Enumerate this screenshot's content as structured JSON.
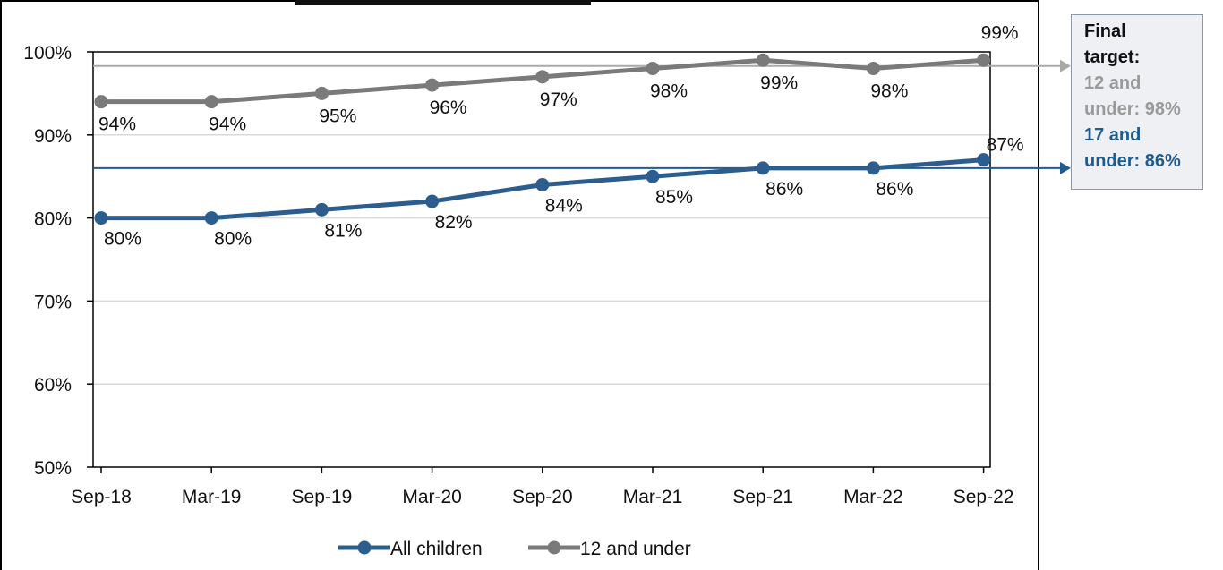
{
  "chart_data": {
    "type": "line",
    "categories": [
      "Sep-18",
      "Mar-19",
      "Sep-19",
      "Mar-20",
      "Sep-20",
      "Mar-21",
      "Sep-21",
      "Mar-22",
      "Sep-22"
    ],
    "series": [
      {
        "name": "All children",
        "color": "#2c5d8f",
        "values": [
          80,
          80,
          81,
          82,
          84,
          85,
          86,
          86,
          87
        ],
        "labels": [
          "80%",
          "80%",
          "81%",
          "82%",
          "84%",
          "85%",
          "86%",
          "86%",
          "87%"
        ]
      },
      {
        "name": "12 and under",
        "color": "#7a7a7a",
        "values": [
          94,
          94,
          95,
          96,
          97,
          98,
          99,
          98,
          99
        ],
        "labels": [
          "94%",
          "94%",
          "95%",
          "96%",
          "97%",
          "98%",
          "99%",
          "98%",
          "99%"
        ]
      }
    ],
    "yticks": [
      "50%",
      "60%",
      "70%",
      "80%",
      "90%",
      "100%"
    ],
    "ylim": [
      50,
      100
    ],
    "grid": true,
    "legend_position": "bottom",
    "targets": [
      {
        "value": 98.3,
        "color": "#a9a9a9"
      },
      {
        "value": 86,
        "color": "#1f5b8e"
      }
    ],
    "target_box": {
      "heading_line1": "Final",
      "heading_line2": "target:",
      "gray_line1": "12 and",
      "gray_line2": "under: 98%",
      "blue_line1": "17 and",
      "blue_line2": "under: 86%"
    }
  }
}
